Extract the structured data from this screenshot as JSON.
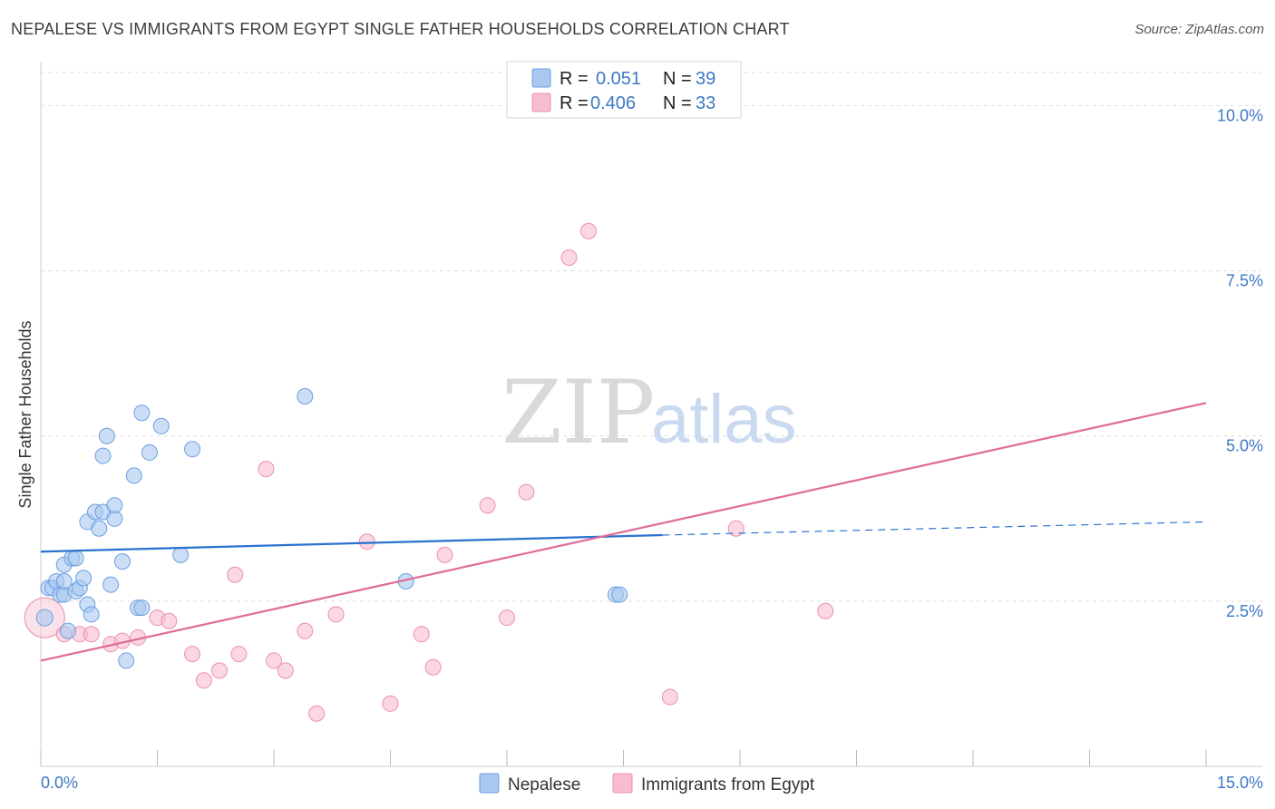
{
  "title": "NEPALESE VS IMMIGRANTS FROM EGYPT SINGLE FATHER HOUSEHOLDS CORRELATION CHART",
  "source": "Source: ZipAtlas.com",
  "watermark": {
    "zip": "ZIP",
    "atlas": "atlas"
  },
  "colors": {
    "blue_fill": "#a9c8f0",
    "blue_stroke": "#6c9fe0",
    "blue_line": "#2a72d0",
    "pink_fill": "#f7bcd0",
    "pink_stroke": "#ec90ae",
    "pink_line": "#e06b97",
    "grid": "#dddddd",
    "tick_label": "#3d78c4"
  },
  "legend": {
    "rows": [
      {
        "r_label": "R = ",
        "r_value": "0.051",
        "n_label": "N = ",
        "n_value": "39",
        "series": "blue"
      },
      {
        "r_label": "R = ",
        "r_value": "0.406",
        "n_label": "N = ",
        "n_value": "33",
        "series": "pink"
      }
    ]
  },
  "chart_data": {
    "type": "scatter",
    "title": "NEPALESE VS IMMIGRANTS FROM EGYPT SINGLE FATHER HOUSEHOLDS CORRELATION CHART",
    "xlabel": "",
    "ylabel": "Single Father Households",
    "xlim": [
      0,
      15
    ],
    "ylim": [
      0,
      10.5
    ],
    "x_tick_labels": [
      "0.0%",
      "15.0%"
    ],
    "y_ticks": [
      2.5,
      5.0,
      7.5,
      10.0
    ],
    "y_tick_labels": [
      "2.5%",
      "5.0%",
      "7.5%",
      "10.0%"
    ],
    "grid": true,
    "legend_position": "top-center",
    "series": [
      {
        "name": "Nepalese",
        "color": "blue",
        "points": [
          [
            0.05,
            2.25
          ],
          [
            0.1,
            2.7
          ],
          [
            0.15,
            2.7
          ],
          [
            0.2,
            2.8
          ],
          [
            0.25,
            2.6
          ],
          [
            0.3,
            2.6
          ],
          [
            0.3,
            2.8
          ],
          [
            0.3,
            3.05
          ],
          [
            0.35,
            2.05
          ],
          [
            0.4,
            3.15
          ],
          [
            0.45,
            2.65
          ],
          [
            0.45,
            3.15
          ],
          [
            0.5,
            2.7
          ],
          [
            0.55,
            2.85
          ],
          [
            0.6,
            2.45
          ],
          [
            0.6,
            3.7
          ],
          [
            0.65,
            2.3
          ],
          [
            0.7,
            3.85
          ],
          [
            0.75,
            3.6
          ],
          [
            0.8,
            4.7
          ],
          [
            0.8,
            3.85
          ],
          [
            0.85,
            5.0
          ],
          [
            0.9,
            2.75
          ],
          [
            0.95,
            3.75
          ],
          [
            0.95,
            3.95
          ],
          [
            1.05,
            3.1
          ],
          [
            1.1,
            1.6
          ],
          [
            1.2,
            4.4
          ],
          [
            1.25,
            2.4
          ],
          [
            1.3,
            5.35
          ],
          [
            1.3,
            2.4
          ],
          [
            1.4,
            4.75
          ],
          [
            1.55,
            5.15
          ],
          [
            1.8,
            3.2
          ],
          [
            1.95,
            4.8
          ],
          [
            3.4,
            5.6
          ],
          [
            4.7,
            2.8
          ],
          [
            7.4,
            2.6
          ],
          [
            7.45,
            2.6
          ]
        ],
        "trend": {
          "x": [
            0,
            8.0
          ],
          "y": [
            3.25,
            3.5
          ],
          "dashed_to": [
            15.0,
            3.7
          ]
        }
      },
      {
        "name": "Immigrants from Egypt",
        "color": "pink",
        "points": [
          [
            0.05,
            2.25
          ],
          [
            0.3,
            2.0
          ],
          [
            0.5,
            2.0
          ],
          [
            0.65,
            2.0
          ],
          [
            0.9,
            1.85
          ],
          [
            1.05,
            1.9
          ],
          [
            1.25,
            1.95
          ],
          [
            1.5,
            2.25
          ],
          [
            1.65,
            2.2
          ],
          [
            1.95,
            1.7
          ],
          [
            2.1,
            1.3
          ],
          [
            2.3,
            1.45
          ],
          [
            2.55,
            1.7
          ],
          [
            2.5,
            2.9
          ],
          [
            2.9,
            4.5
          ],
          [
            3.0,
            1.6
          ],
          [
            3.15,
            1.45
          ],
          [
            3.4,
            2.05
          ],
          [
            3.55,
            0.8
          ],
          [
            3.8,
            2.3
          ],
          [
            4.2,
            3.4
          ],
          [
            4.5,
            0.95
          ],
          [
            4.9,
            2.0
          ],
          [
            5.05,
            1.5
          ],
          [
            5.2,
            3.2
          ],
          [
            5.75,
            3.95
          ],
          [
            6.0,
            2.25
          ],
          [
            6.25,
            4.15
          ],
          [
            6.8,
            7.7
          ],
          [
            7.05,
            8.1
          ],
          [
            8.1,
            1.05
          ],
          [
            8.95,
            3.6
          ],
          [
            10.1,
            2.35
          ]
        ],
        "trend": {
          "x": [
            0,
            15.0
          ],
          "y": [
            1.6,
            5.5
          ]
        }
      }
    ]
  },
  "bottom_legend": [
    {
      "label": "Nepalese",
      "color": "blue"
    },
    {
      "label": "Immigrants from Egypt",
      "color": "pink"
    }
  ]
}
